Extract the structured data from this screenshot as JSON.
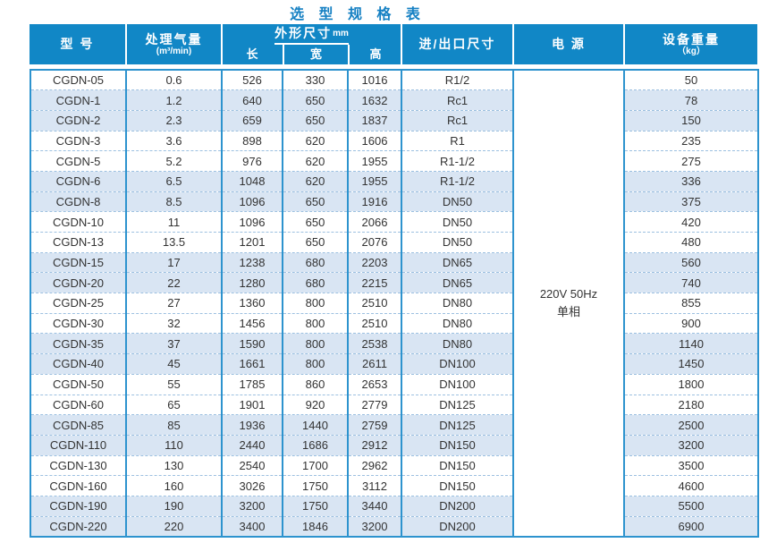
{
  "title": "选 型 规 格 表",
  "colors": {
    "header_bg": "#1187c6",
    "row_alt": "#d9e5f3",
    "border_solid": "#2d93ce",
    "border_dashed": "#9cc0e0",
    "title_color": "#1580c3",
    "text_color": "#333333"
  },
  "table": {
    "headers": {
      "model": "型 号",
      "capacity": "处理气量",
      "capacity_unit": "(m³/min)",
      "dimensions": "外形尺寸",
      "dimensions_unit": "mm",
      "length": "长",
      "width": "宽",
      "height": "高",
      "port": "进/出口尺寸",
      "power": "电 源",
      "weight": "设备重量",
      "weight_unit": "（kg）"
    },
    "power": {
      "line1": "220V 50Hz",
      "line2": "单相"
    },
    "rows": [
      {
        "model": "CGDN-05",
        "capacity": "0.6",
        "length": "526",
        "width": "330",
        "height": "1016",
        "port": "R1/2",
        "weight": "50"
      },
      {
        "model": "CGDN-1",
        "capacity": "1.2",
        "length": "640",
        "width": "650",
        "height": "1632",
        "port": "Rc1",
        "weight": "78"
      },
      {
        "model": "CGDN-2",
        "capacity": "2.3",
        "length": "659",
        "width": "650",
        "height": "1837",
        "port": "Rc1",
        "weight": "150"
      },
      {
        "model": "CGDN-3",
        "capacity": "3.6",
        "length": "898",
        "width": "620",
        "height": "1606",
        "port": "R1",
        "weight": "235"
      },
      {
        "model": "CGDN-5",
        "capacity": "5.2",
        "length": "976",
        "width": "620",
        "height": "1955",
        "port": "R1-1/2",
        "weight": "275"
      },
      {
        "model": "CGDN-6",
        "capacity": "6.5",
        "length": "1048",
        "width": "620",
        "height": "1955",
        "port": "R1-1/2",
        "weight": "336"
      },
      {
        "model": "CGDN-8",
        "capacity": "8.5",
        "length": "1096",
        "width": "650",
        "height": "1916",
        "port": "DN50",
        "weight": "375"
      },
      {
        "model": "CGDN-10",
        "capacity": "11",
        "length": "1096",
        "width": "650",
        "height": "2066",
        "port": "DN50",
        "weight": "420"
      },
      {
        "model": "CGDN-13",
        "capacity": "13.5",
        "length": "1201",
        "width": "650",
        "height": "2076",
        "port": "DN50",
        "weight": "480"
      },
      {
        "model": "CGDN-15",
        "capacity": "17",
        "length": "1238",
        "width": "680",
        "height": "2203",
        "port": "DN65",
        "weight": "560"
      },
      {
        "model": "CGDN-20",
        "capacity": "22",
        "length": "1280",
        "width": "680",
        "height": "2215",
        "port": "DN65",
        "weight": "740"
      },
      {
        "model": "CGDN-25",
        "capacity": "27",
        "length": "1360",
        "width": "800",
        "height": "2510",
        "port": "DN80",
        "weight": "855"
      },
      {
        "model": "CGDN-30",
        "capacity": "32",
        "length": "1456",
        "width": "800",
        "height": "2510",
        "port": "DN80",
        "weight": "900"
      },
      {
        "model": "CGDN-35",
        "capacity": "37",
        "length": "1590",
        "width": "800",
        "height": "2538",
        "port": "DN80",
        "weight": "1140"
      },
      {
        "model": "CGDN-40",
        "capacity": "45",
        "length": "1661",
        "width": "800",
        "height": "2611",
        "port": "DN100",
        "weight": "1450"
      },
      {
        "model": "CGDN-50",
        "capacity": "55",
        "length": "1785",
        "width": "860",
        "height": "2653",
        "port": "DN100",
        "weight": "1800"
      },
      {
        "model": "CGDN-60",
        "capacity": "65",
        "length": "1901",
        "width": "920",
        "height": "2779",
        "port": "DN125",
        "weight": "2180"
      },
      {
        "model": "CGDN-85",
        "capacity": "85",
        "length": "1936",
        "width": "1440",
        "height": "2759",
        "port": "DN125",
        "weight": "2500"
      },
      {
        "model": "CGDN-110",
        "capacity": "110",
        "length": "2440",
        "width": "1686",
        "height": "2912",
        "port": "DN150",
        "weight": "3200"
      },
      {
        "model": "CGDN-130",
        "capacity": "130",
        "length": "2540",
        "width": "1700",
        "height": "2962",
        "port": "DN150",
        "weight": "3500"
      },
      {
        "model": "CGDN-160",
        "capacity": "160",
        "length": "3026",
        "width": "1750",
        "height": "3112",
        "port": "DN150",
        "weight": "4600"
      },
      {
        "model": "CGDN-190",
        "capacity": "190",
        "length": "3200",
        "width": "1750",
        "height": "3440",
        "port": "DN200",
        "weight": "5500"
      },
      {
        "model": "CGDN-220",
        "capacity": "220",
        "length": "3400",
        "width": "1846",
        "height": "3200",
        "port": "DN200",
        "weight": "6900"
      }
    ]
  }
}
